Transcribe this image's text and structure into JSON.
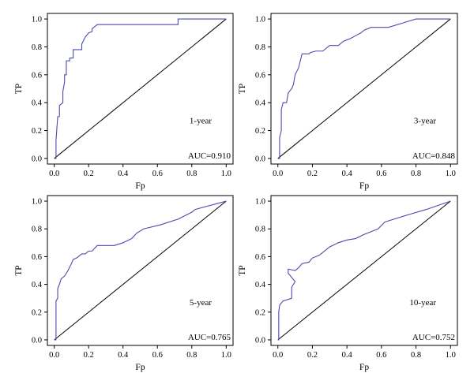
{
  "chart_data": [
    {
      "type": "line",
      "label": "1-year",
      "auc_text": "AUC=0.910",
      "xlabel": "Fp",
      "ylabel": "TP",
      "xlim": [
        0,
        1
      ],
      "ylim": [
        0,
        1
      ],
      "xticks": [
        "0.0",
        "0.2",
        "0.4",
        "0.6",
        "0.8",
        "1.0"
      ],
      "yticks": [
        "0.0",
        "0.2",
        "0.4",
        "0.6",
        "0.8",
        "1.0"
      ],
      "points": [
        [
          0,
          0
        ],
        [
          0.01,
          0
        ],
        [
          0.01,
          0.13
        ],
        [
          0.02,
          0.3
        ],
        [
          0.03,
          0.3
        ],
        [
          0.03,
          0.38
        ],
        [
          0.05,
          0.4
        ],
        [
          0.05,
          0.48
        ],
        [
          0.06,
          0.55
        ],
        [
          0.06,
          0.6
        ],
        [
          0.07,
          0.6
        ],
        [
          0.07,
          0.7
        ],
        [
          0.09,
          0.7
        ],
        [
          0.09,
          0.72
        ],
        [
          0.11,
          0.72
        ],
        [
          0.11,
          0.78
        ],
        [
          0.16,
          0.78
        ],
        [
          0.16,
          0.82
        ],
        [
          0.18,
          0.87
        ],
        [
          0.2,
          0.9
        ],
        [
          0.22,
          0.91
        ],
        [
          0.22,
          0.93
        ],
        [
          0.25,
          0.96
        ],
        [
          0.68,
          0.96
        ],
        [
          0.72,
          0.96
        ],
        [
          0.72,
          1.0
        ],
        [
          1.0,
          1.0
        ]
      ]
    },
    {
      "type": "line",
      "label": "3-year",
      "auc_text": "AUC=0.848",
      "xlabel": "Fp",
      "ylabel": "TP",
      "xlim": [
        0,
        1
      ],
      "ylim": [
        0,
        1
      ],
      "xticks": [
        "0.0",
        "0.2",
        "0.4",
        "0.6",
        "0.8",
        "1.0"
      ],
      "yticks": [
        "0.0",
        "0.2",
        "0.4",
        "0.6",
        "0.8",
        "1.0"
      ],
      "points": [
        [
          0,
          0
        ],
        [
          0.01,
          0
        ],
        [
          0.01,
          0.15
        ],
        [
          0.02,
          0.2
        ],
        [
          0.02,
          0.35
        ],
        [
          0.03,
          0.4
        ],
        [
          0.05,
          0.4
        ],
        [
          0.06,
          0.47
        ],
        [
          0.08,
          0.5
        ],
        [
          0.09,
          0.53
        ],
        [
          0.1,
          0.6
        ],
        [
          0.12,
          0.65
        ],
        [
          0.14,
          0.75
        ],
        [
          0.18,
          0.75
        ],
        [
          0.19,
          0.76
        ],
        [
          0.22,
          0.77
        ],
        [
          0.26,
          0.77
        ],
        [
          0.3,
          0.81
        ],
        [
          0.35,
          0.81
        ],
        [
          0.38,
          0.84
        ],
        [
          0.42,
          0.86
        ],
        [
          0.45,
          0.88
        ],
        [
          0.48,
          0.9
        ],
        [
          0.5,
          0.92
        ],
        [
          0.54,
          0.94
        ],
        [
          0.64,
          0.94
        ],
        [
          0.72,
          0.97
        ],
        [
          0.8,
          1.0
        ],
        [
          1.0,
          1.0
        ]
      ]
    },
    {
      "type": "line",
      "label": "5-year",
      "auc_text": "AUC=0.765",
      "xlabel": "Fp",
      "ylabel": "TP",
      "xlim": [
        0,
        1
      ],
      "ylim": [
        0,
        1
      ],
      "xticks": [
        "0.0",
        "0.2",
        "0.4",
        "0.6",
        "0.8",
        "1.0"
      ],
      "yticks": [
        "0.0",
        "0.2",
        "0.4",
        "0.6",
        "0.8",
        "1.0"
      ],
      "points": [
        [
          0,
          0
        ],
        [
          0.01,
          0
        ],
        [
          0.01,
          0.28
        ],
        [
          0.02,
          0.3
        ],
        [
          0.02,
          0.37
        ],
        [
          0.03,
          0.4
        ],
        [
          0.04,
          0.44
        ],
        [
          0.06,
          0.46
        ],
        [
          0.08,
          0.5
        ],
        [
          0.1,
          0.55
        ],
        [
          0.11,
          0.58
        ],
        [
          0.13,
          0.59
        ],
        [
          0.16,
          0.62
        ],
        [
          0.18,
          0.62
        ],
        [
          0.2,
          0.64
        ],
        [
          0.22,
          0.64
        ],
        [
          0.25,
          0.68
        ],
        [
          0.35,
          0.68
        ],
        [
          0.4,
          0.7
        ],
        [
          0.45,
          0.73
        ],
        [
          0.48,
          0.77
        ],
        [
          0.52,
          0.8
        ],
        [
          0.62,
          0.83
        ],
        [
          0.72,
          0.87
        ],
        [
          0.8,
          0.92
        ],
        [
          0.82,
          0.94
        ],
        [
          1.0,
          1.0
        ]
      ]
    },
    {
      "type": "line",
      "label": "10-year",
      "auc_text": "AUC=0.752",
      "xlabel": "Fp",
      "ylabel": "TP",
      "xlim": [
        0,
        1
      ],
      "ylim": [
        0,
        1
      ],
      "xticks": [
        "0.0",
        "0.2",
        "0.4",
        "0.6",
        "0.8",
        "1.0"
      ],
      "yticks": [
        "0.0",
        "0.2",
        "0.4",
        "0.6",
        "0.8",
        "1.0"
      ],
      "points": [
        [
          0,
          0
        ],
        [
          0.005,
          0
        ],
        [
          0.005,
          0.2
        ],
        [
          0.01,
          0.25
        ],
        [
          0.03,
          0.28
        ],
        [
          0.08,
          0.3
        ],
        [
          0.08,
          0.38
        ],
        [
          0.1,
          0.42
        ],
        [
          0.06,
          0.48
        ],
        [
          0.06,
          0.51
        ],
        [
          0.1,
          0.5
        ],
        [
          0.12,
          0.52
        ],
        [
          0.14,
          0.55
        ],
        [
          0.18,
          0.56
        ],
        [
          0.2,
          0.59
        ],
        [
          0.24,
          0.61
        ],
        [
          0.28,
          0.65
        ],
        [
          0.3,
          0.67
        ],
        [
          0.35,
          0.7
        ],
        [
          0.4,
          0.72
        ],
        [
          0.45,
          0.73
        ],
        [
          0.5,
          0.76
        ],
        [
          0.58,
          0.8
        ],
        [
          0.62,
          0.85
        ],
        [
          0.75,
          0.9
        ],
        [
          0.86,
          0.94
        ],
        [
          1.0,
          1.0
        ]
      ]
    }
  ]
}
